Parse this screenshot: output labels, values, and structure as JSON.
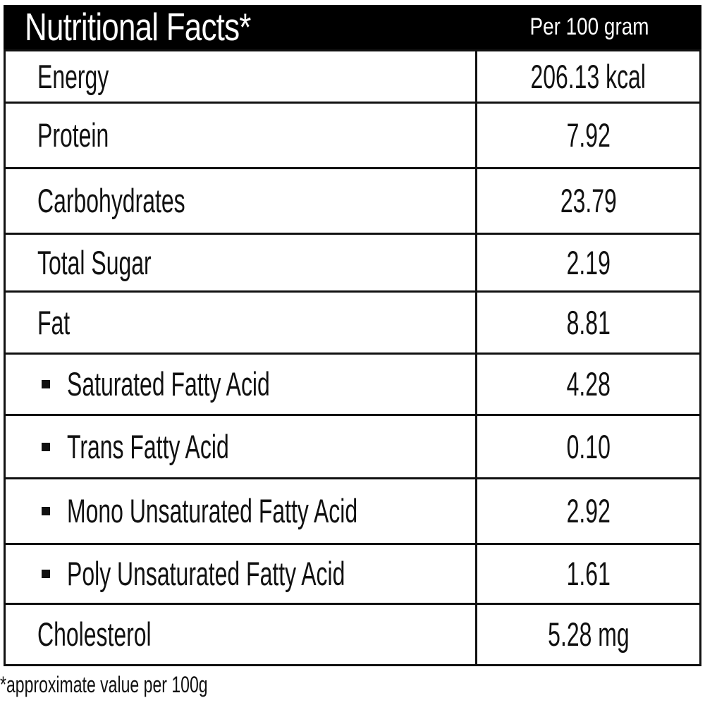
{
  "header": {
    "title": "Nutritional Facts*",
    "column_label": "Per 100 gram",
    "bg_color": "#000000",
    "text_color": "#ffffff"
  },
  "table": {
    "border_color": "#111111",
    "text_color": "#111111",
    "rows": [
      {
        "label": "Energy",
        "value": "206.13 kcal",
        "sub_item": false
      },
      {
        "label": "Protein",
        "value": "7.92",
        "sub_item": false
      },
      {
        "label": "Carbohydrates",
        "value": "23.79",
        "sub_item": false
      },
      {
        "label": "Total Sugar",
        "value": "2.19",
        "sub_item": false
      },
      {
        "label": "Fat",
        "value": "8.81",
        "sub_item": false
      },
      {
        "label": "Saturated Fatty Acid",
        "value": "4.28",
        "sub_item": true
      },
      {
        "label": "Trans Fatty Acid",
        "value": "0.10",
        "sub_item": true
      },
      {
        "label": "Mono Unsaturated Fatty Acid",
        "value": "2.92",
        "sub_item": true
      },
      {
        "label": "Poly Unsaturated Fatty Acid",
        "value": "1.61",
        "sub_item": true
      },
      {
        "label": "Cholesterol",
        "value": "5.28 mg",
        "sub_item": false
      }
    ]
  },
  "footnote": "*approximate value per 100g"
}
